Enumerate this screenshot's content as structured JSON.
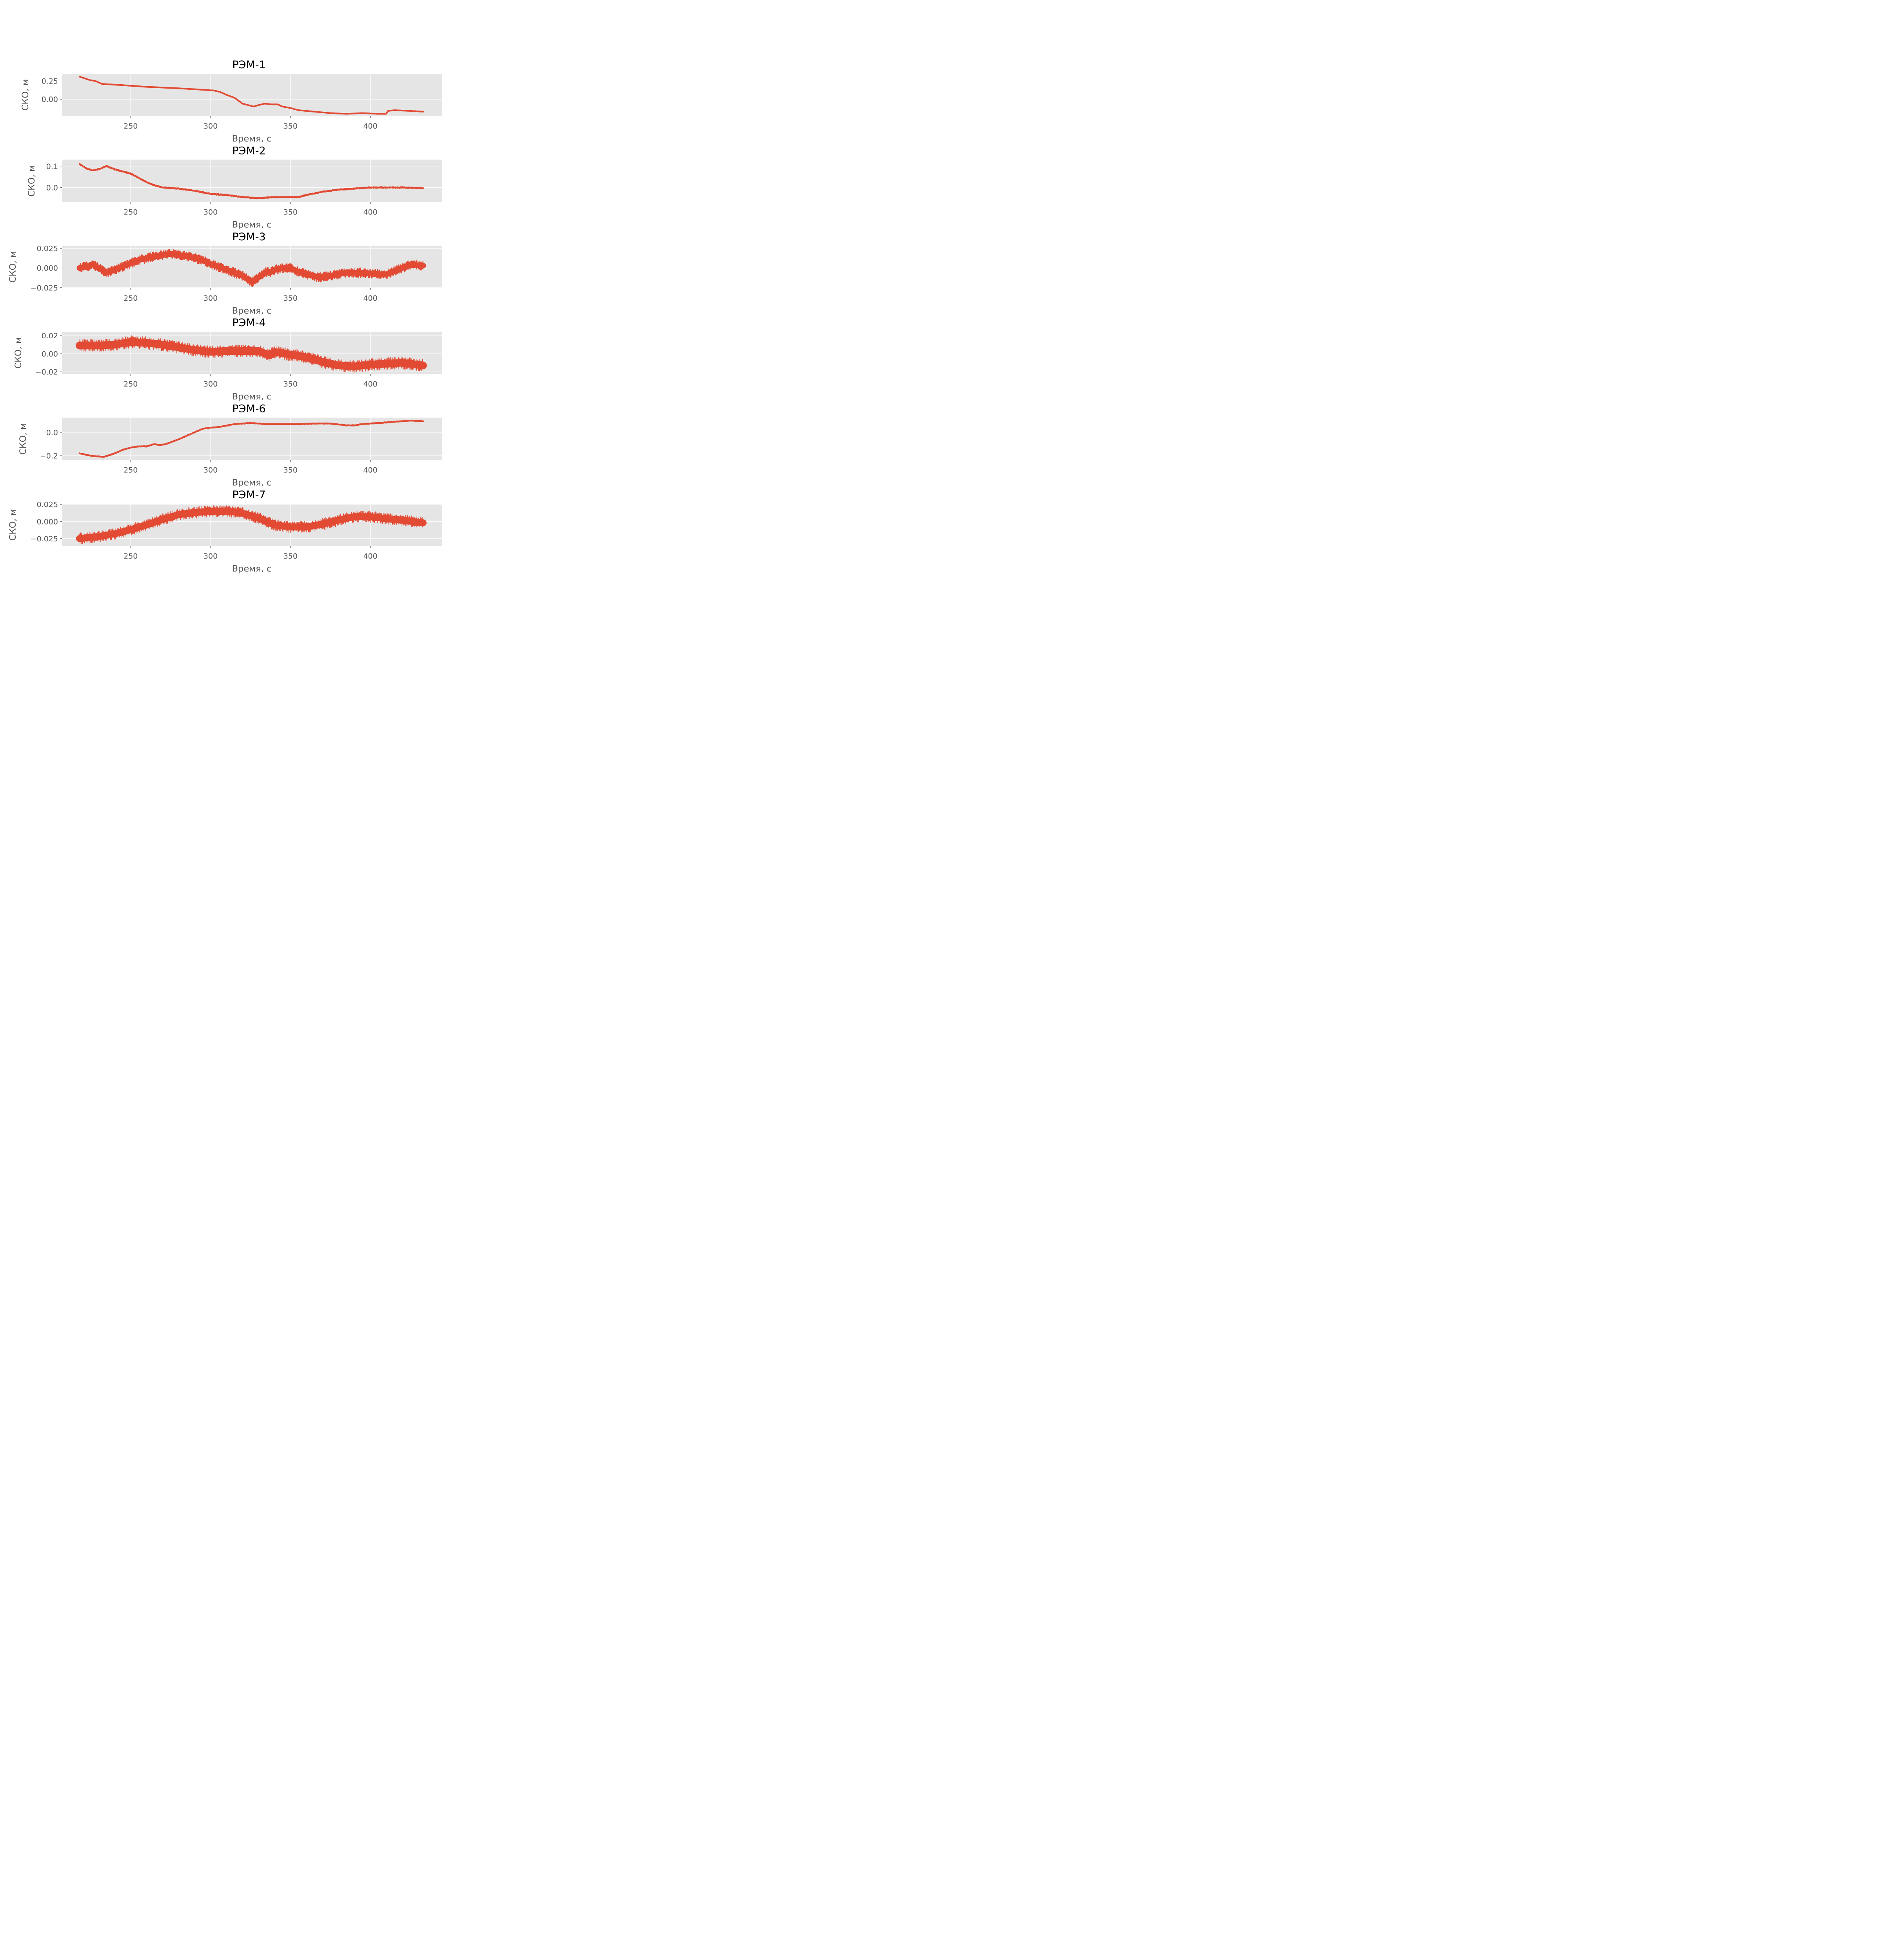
{
  "chart_data": [
    {
      "type": "line",
      "title": "РЭМ-1",
      "xlabel": "Время, с",
      "ylabel": "СКО, м",
      "xlim": [
        207,
        445
      ],
      "ylim": [
        -0.23,
        0.35
      ],
      "xticks": [
        250,
        300,
        350,
        400
      ],
      "xtick_labels": [
        "250",
        "300",
        "350",
        "400"
      ],
      "yticks": [
        0.25,
        0.0
      ],
      "ytick_labels": [
        "0.25",
        "0.00"
      ],
      "grid": true,
      "series": [
        {
          "color": "#e24a33",
          "noise": 0.006,
          "x": [
            218,
            222,
            225,
            228,
            232,
            240,
            260,
            280,
            295,
            302,
            306,
            310,
            315,
            320,
            327,
            330,
            334,
            338,
            342,
            345,
            350,
            355,
            365,
            375,
            385,
            395,
            405,
            410,
            411,
            415,
            425,
            433
          ],
          "y": [
            0.31,
            0.28,
            0.26,
            0.25,
            0.21,
            0.2,
            0.17,
            0.15,
            0.13,
            0.12,
            0.1,
            0.06,
            0.02,
            -0.06,
            -0.1,
            -0.08,
            -0.06,
            -0.07,
            -0.07,
            -0.1,
            -0.12,
            -0.15,
            -0.17,
            -0.19,
            -0.2,
            -0.19,
            -0.2,
            -0.2,
            -0.16,
            -0.15,
            -0.16,
            -0.17
          ]
        }
      ]
    },
    {
      "type": "line",
      "title": "РЭМ-2",
      "xlabel": "Время, с",
      "ylabel": "СКО, м",
      "xlim": [
        207,
        445
      ],
      "ylim": [
        -0.068,
        0.13
      ],
      "xticks": [
        250,
        300,
        350,
        400
      ],
      "xtick_labels": [
        "250",
        "300",
        "350",
        "400"
      ],
      "yticks": [
        0.1,
        0.0
      ],
      "ytick_labels": [
        "0.1",
        "0.0"
      ],
      "grid": true,
      "series": [
        {
          "color": "#e24a33",
          "noise": 0.004,
          "x": [
            218,
            222,
            226,
            230,
            235,
            240,
            250,
            255,
            260,
            265,
            270,
            280,
            290,
            300,
            310,
            320,
            330,
            340,
            350,
            355,
            360,
            370,
            380,
            390,
            400,
            410,
            420,
            433
          ],
          "y": [
            0.11,
            0.09,
            0.08,
            0.085,
            0.1,
            0.085,
            0.065,
            0.045,
            0.025,
            0.01,
            0.0,
            -0.005,
            -0.015,
            -0.03,
            -0.035,
            -0.045,
            -0.05,
            -0.045,
            -0.045,
            -0.045,
            -0.035,
            -0.02,
            -0.01,
            -0.005,
            0.0,
            0.0,
            0.0,
            -0.003
          ]
        }
      ]
    },
    {
      "type": "line",
      "title": "РЭМ-3",
      "xlabel": "Время, с",
      "ylabel": "СКО, м",
      "xlim": [
        207,
        445
      ],
      "ylim": [
        -0.0255,
        0.0283
      ],
      "xticks": [
        250,
        300,
        350,
        400
      ],
      "xtick_labels": [
        "250",
        "300",
        "350",
        "400"
      ],
      "yticks": [
        0.025,
        0.0,
        -0.025
      ],
      "ytick_labels": [
        "0.025",
        "0.000",
        "−0.025"
      ],
      "grid": true,
      "series": [
        {
          "color": "#e24a33",
          "noise": 0.006,
          "x": [
            218,
            223,
            226,
            230,
            235,
            245,
            255,
            265,
            275,
            285,
            295,
            300,
            310,
            320,
            326,
            330,
            335,
            338,
            340,
            345,
            350,
            355,
            360,
            368,
            375,
            385,
            395,
            405,
            410,
            415,
            425,
            433
          ],
          "y": [
            0.0,
            0.002,
            0.005,
            0.0,
            -0.006,
            0.002,
            0.01,
            0.015,
            0.018,
            0.015,
            0.01,
            0.005,
            -0.002,
            -0.01,
            -0.018,
            -0.012,
            -0.005,
            -0.005,
            -0.002,
            0.0,
            0.0,
            -0.005,
            -0.008,
            -0.012,
            -0.01,
            -0.006,
            -0.006,
            -0.008,
            -0.008,
            -0.004,
            0.004,
            0.003
          ]
        }
      ]
    },
    {
      "type": "line",
      "title": "РЭМ-4",
      "xlabel": "Время, с",
      "ylabel": "СКО, м",
      "xlim": [
        207,
        445
      ],
      "ylim": [
        -0.0225,
        0.0243
      ],
      "xticks": [
        250,
        300,
        350,
        400
      ],
      "xtick_labels": [
        "250",
        "300",
        "350",
        "400"
      ],
      "yticks": [
        0.02,
        0.0,
        -0.02
      ],
      "ytick_labels": [
        "0.02",
        "0.00",
        "−0.02"
      ],
      "grid": true,
      "series": [
        {
          "color": "#e24a33",
          "noise": 0.007,
          "x": [
            218,
            230,
            240,
            250,
            260,
            270,
            280,
            290,
            300,
            310,
            320,
            330,
            337,
            340,
            350,
            360,
            370,
            380,
            390,
            400,
            410,
            420,
            433
          ],
          "y": [
            0.009,
            0.009,
            0.01,
            0.013,
            0.012,
            0.01,
            0.007,
            0.004,
            0.002,
            0.003,
            0.003,
            0.003,
            -0.002,
            0.002,
            -0.001,
            -0.004,
            -0.009,
            -0.013,
            -0.014,
            -0.012,
            -0.011,
            -0.01,
            -0.013
          ]
        }
      ]
    },
    {
      "type": "line",
      "title": "РЭМ-6",
      "xlabel": "Время, с",
      "ylabel": "СКО, м",
      "xlim": [
        207,
        445
      ],
      "ylim": [
        -0.237,
        0.125
      ],
      "xticks": [
        250,
        300,
        350,
        400
      ],
      "xtick_labels": [
        "250",
        "300",
        "350",
        "400"
      ],
      "yticks": [
        0.0,
        -0.2
      ],
      "ytick_labels": [
        "0.0",
        "−0.2"
      ],
      "grid": true,
      "series": [
        {
          "color": "#e24a33",
          "noise": 0.006,
          "x": [
            218,
            225,
            233,
            240,
            245,
            250,
            255,
            260,
            265,
            268,
            272,
            280,
            290,
            295,
            300,
            305,
            315,
            325,
            335,
            345,
            355,
            365,
            375,
            385,
            390,
            395,
            405,
            415,
            425,
            433
          ],
          "y": [
            -0.18,
            -0.2,
            -0.21,
            -0.18,
            -0.15,
            -0.13,
            -0.12,
            -0.12,
            -0.1,
            -0.11,
            -0.1,
            -0.06,
            0.0,
            0.03,
            0.04,
            0.045,
            0.07,
            0.08,
            0.07,
            0.07,
            0.07,
            0.075,
            0.075,
            0.06,
            0.06,
            0.07,
            0.08,
            0.09,
            0.1,
            0.095
          ]
        }
      ]
    },
    {
      "type": "line",
      "title": "РЭМ-7",
      "xlabel": "Время, с",
      "ylabel": "СКО, м",
      "xlim": [
        207,
        445
      ],
      "ylim": [
        -0.036,
        0.026
      ],
      "xticks": [
        250,
        300,
        350,
        400
      ],
      "xtick_labels": [
        "250",
        "300",
        "350",
        "400"
      ],
      "yticks": [
        0.025,
        0.0,
        -0.025
      ],
      "ytick_labels": [
        "0.025",
        "0.000",
        "−0.025"
      ],
      "grid": true,
      "series": [
        {
          "color": "#e24a33",
          "noise": 0.0085,
          "x": [
            218,
            230,
            240,
            250,
            260,
            270,
            280,
            290,
            300,
            310,
            315,
            320,
            330,
            337,
            340,
            350,
            360,
            370,
            380,
            390,
            400,
            410,
            420,
            433
          ],
          "y": [
            -0.025,
            -0.022,
            -0.018,
            -0.012,
            -0.005,
            0.003,
            0.01,
            0.013,
            0.015,
            0.015,
            0.014,
            0.012,
            0.005,
            -0.002,
            -0.005,
            -0.008,
            -0.008,
            -0.004,
            0.002,
            0.007,
            0.007,
            0.004,
            0.002,
            -0.002
          ]
        }
      ]
    }
  ]
}
